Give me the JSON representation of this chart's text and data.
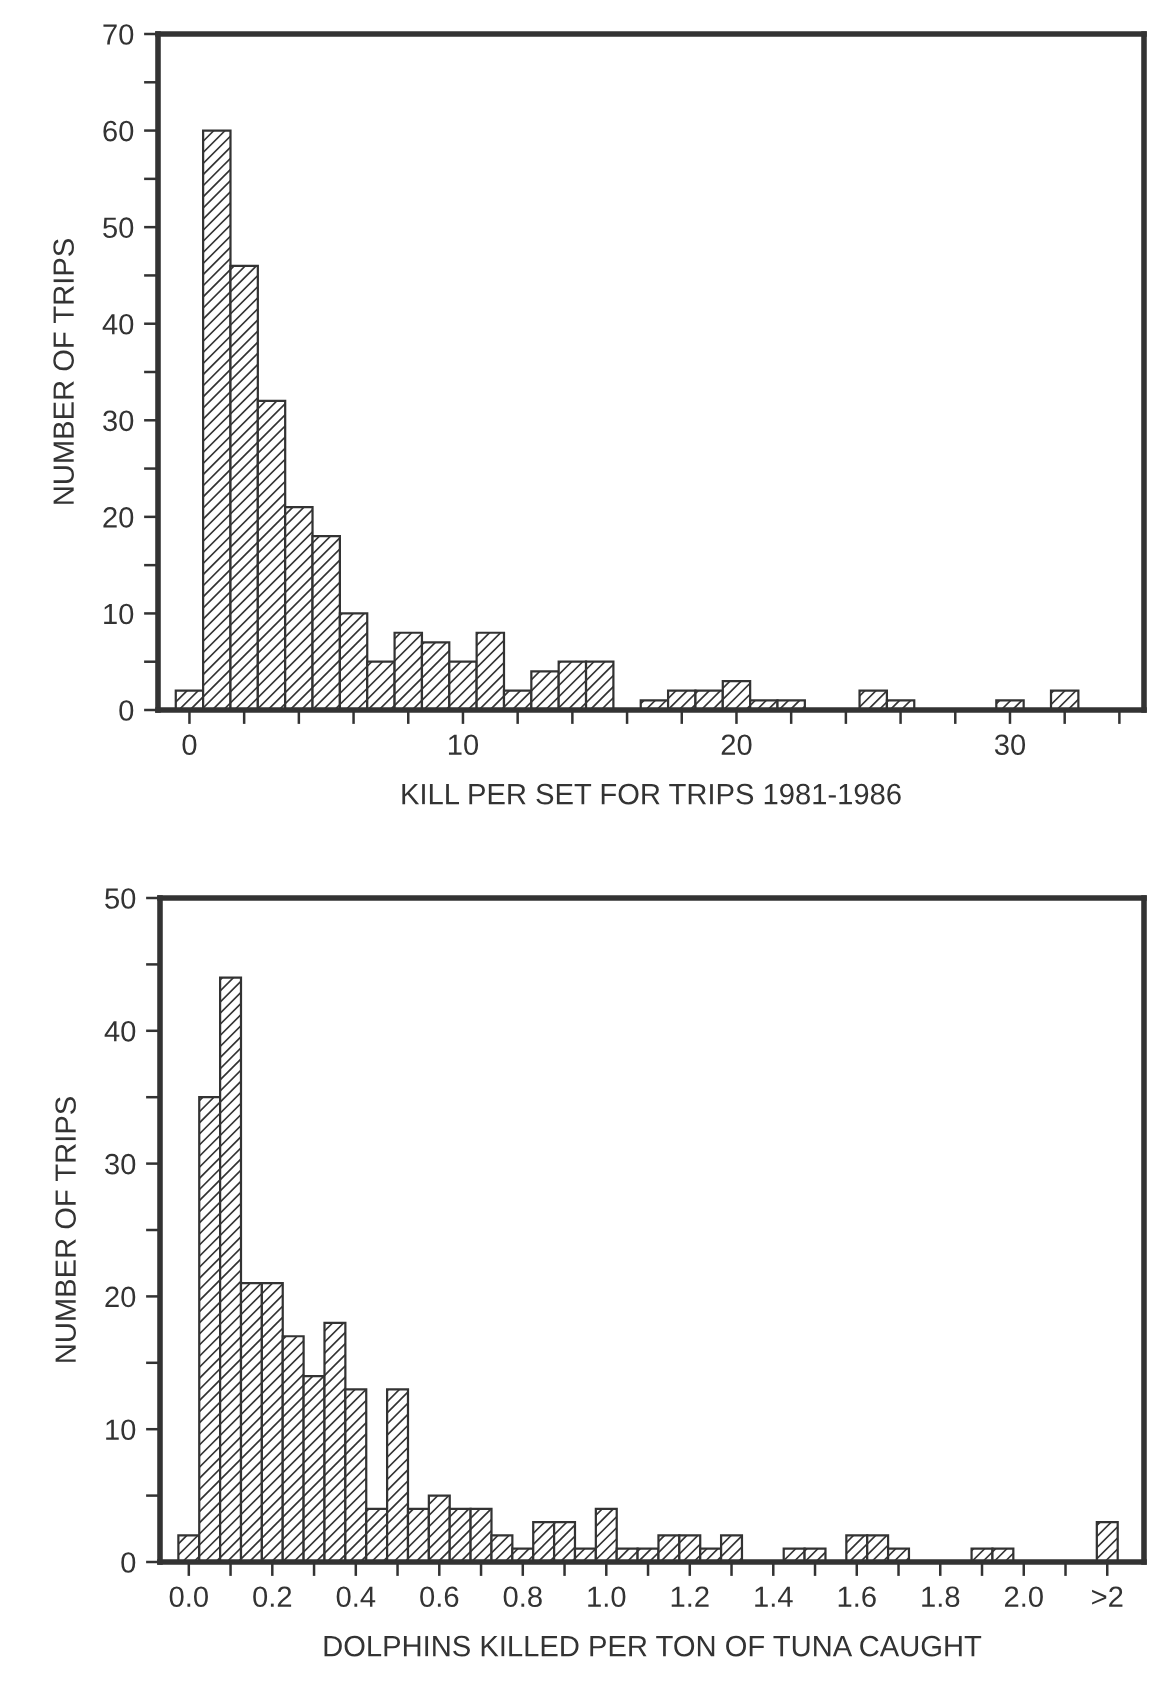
{
  "chart_data": [
    {
      "type": "bar",
      "xlabel": "KILL PER SET FOR TRIPS 1981-1986",
      "ylabel": "NUMBER OF TRIPS",
      "color": "#333333",
      "x": [
        0,
        1,
        2,
        3,
        4,
        5,
        6,
        7,
        8,
        9,
        10,
        11,
        12,
        13,
        14,
        15,
        16,
        17,
        18,
        19,
        20,
        21,
        22,
        23,
        24,
        25,
        26,
        27,
        28,
        29,
        30,
        31,
        32
      ],
      "values": [
        2,
        60,
        46,
        32,
        21,
        18,
        10,
        5,
        8,
        7,
        5,
        8,
        2,
        4,
        5,
        5,
        0,
        1,
        2,
        2,
        3,
        1,
        1,
        0,
        0,
        2,
        1,
        0,
        0,
        0,
        1,
        0,
        2
      ],
      "xlim": [
        -1.15,
        34.9
      ],
      "xticks": [
        0,
        {
          "value": 2,
          "label": null
        },
        {
          "value": 4,
          "label": null
        },
        {
          "value": 6,
          "label": null
        },
        {
          "value": 8,
          "label": null
        },
        10,
        {
          "value": 12,
          "label": null
        },
        {
          "value": 14,
          "label": null
        },
        {
          "value": 16,
          "label": null
        },
        {
          "value": 18,
          "label": null
        },
        20,
        {
          "value": 22,
          "label": null
        },
        {
          "value": 24,
          "label": null
        },
        {
          "value": 26,
          "label": null
        },
        {
          "value": 28,
          "label": null
        },
        30,
        {
          "value": 32,
          "label": null
        },
        {
          "value": 34,
          "label": null
        }
      ],
      "ylim": [
        0,
        70
      ],
      "yticks": [
        0,
        {
          "value": 5,
          "label": null
        },
        10,
        {
          "value": 15,
          "label": null
        },
        20,
        {
          "value": 25,
          "label": null
        },
        30,
        {
          "value": 35,
          "label": null
        },
        40,
        {
          "value": 45,
          "label": null
        },
        50,
        {
          "value": 55,
          "label": null
        },
        60,
        {
          "value": 65,
          "label": null
        },
        70
      ],
      "grid": false,
      "legend": false
    },
    {
      "type": "bar",
      "xlabel": "DOLPHINS KILLED PER TON OF TUNA CAUGHT",
      "ylabel": "NUMBER OF TRIPS",
      "color": "#333333",
      "x": [
        0,
        0.05,
        0.1,
        0.15,
        0.2,
        0.25,
        0.3,
        0.35,
        0.4,
        0.45,
        0.5,
        0.55,
        0.6,
        0.65,
        0.7,
        0.75,
        0.8,
        0.85,
        0.9,
        0.95,
        1.0,
        1.05,
        1.1,
        1.15,
        1.2,
        1.25,
        1.3,
        1.35,
        1.4,
        1.45,
        1.5,
        1.55,
        1.6,
        1.65,
        1.7,
        1.75,
        1.8,
        1.85,
        1.9,
        1.95,
        2.0,
        2.05,
        2.1,
        2.15,
        2.2
      ],
      "values": [
        2,
        35,
        44,
        21,
        21,
        17,
        14,
        18,
        13,
        4,
        13,
        4,
        5,
        4,
        4,
        2,
        1,
        3,
        3,
        1,
        4,
        1,
        1,
        2,
        2,
        1,
        2,
        0,
        0,
        1,
        1,
        0,
        2,
        2,
        1,
        0,
        0,
        0,
        1,
        1,
        0,
        0,
        0,
        0,
        3
      ],
      "xlim": [
        -0.069,
        2.288
      ],
      "xticks": [
        {
          "value": 0,
          "label": "0.0"
        },
        {
          "value": 0.1,
          "label": null
        },
        {
          "value": 0.2,
          "label": "0.2"
        },
        {
          "value": 0.3,
          "label": null
        },
        {
          "value": 0.4,
          "label": "0.4"
        },
        {
          "value": 0.5,
          "label": null
        },
        {
          "value": 0.6,
          "label": "0.6"
        },
        {
          "value": 0.7,
          "label": null
        },
        {
          "value": 0.8,
          "label": "0.8"
        },
        {
          "value": 0.9,
          "label": null
        },
        {
          "value": 1.0,
          "label": "1.0"
        },
        {
          "value": 1.1,
          "label": null
        },
        {
          "value": 1.2,
          "label": "1.2"
        },
        {
          "value": 1.3,
          "label": null
        },
        {
          "value": 1.4,
          "label": "1.4"
        },
        {
          "value": 1.5,
          "label": null
        },
        {
          "value": 1.6,
          "label": "1.6"
        },
        {
          "value": 1.7,
          "label": null
        },
        {
          "value": 1.8,
          "label": "1.8"
        },
        {
          "value": 1.9,
          "label": null
        },
        {
          "value": 2.0,
          "label": "2.0"
        },
        {
          "value": 2.1,
          "label": null
        },
        {
          "value": 2.2,
          "label": ">2"
        }
      ],
      "ylim": [
        0,
        50
      ],
      "yticks": [
        0,
        {
          "value": 5,
          "label": null
        },
        10,
        {
          "value": 15,
          "label": null
        },
        20,
        {
          "value": 25,
          "label": null
        },
        30,
        {
          "value": 35,
          "label": null
        },
        40,
        {
          "value": 45,
          "label": null
        },
        50
      ],
      "grid": false,
      "legend": false
    }
  ]
}
